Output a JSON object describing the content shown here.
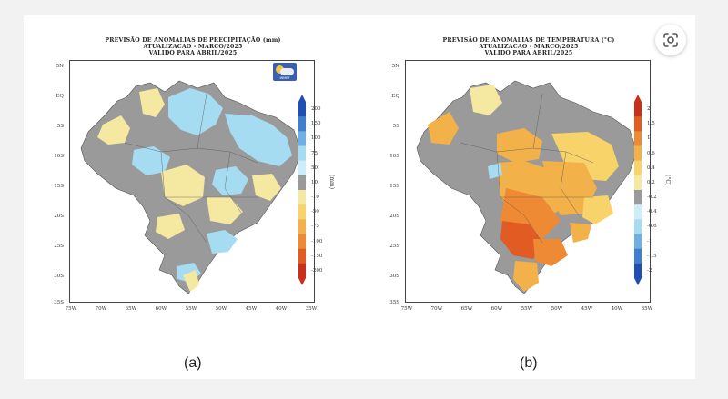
{
  "panels": [
    {
      "title_lines": [
        "PREVISÃO DE ANOMALIAS DE PRECIPITAÇÃO (mm)",
        "ATUALIZACAO - MARCO/2025",
        "VALIDO PARA ABRIL/2025"
      ],
      "caption": "(a)",
      "unit_label": "(mm)",
      "colorbar_ticks": [
        "200",
        "150",
        "100",
        "75",
        "50",
        "10",
        "-10",
        "-50",
        "-75",
        "-100",
        "-150",
        "-200"
      ],
      "colorbar_colors": [
        "#1f4fb4",
        "#3f7fd0",
        "#6fb0e4",
        "#a6dcf2",
        "#cdeef8",
        "#9a9a9a",
        "#f5e8a0",
        "#f7d36a",
        "#f3b14a",
        "#ee8a33",
        "#e15b22",
        "#c9301a"
      ]
    },
    {
      "title_lines": [
        "PREVISÃO DE ANOMALIAS DE TEMPERATURA (°C)",
        "ATUALIZACAO - MARCO/2025",
        "VALIDO PARA ABRIL/2025"
      ],
      "caption": "(b)",
      "unit_label": "(°C)",
      "colorbar_ticks": [
        "2",
        "1.5",
        "1",
        "0.6",
        "0.4",
        "0.2",
        "-0.2",
        "-0.4",
        "-0.6",
        "-1",
        "-1.5",
        "-2"
      ],
      "colorbar_colors": [
        "#c9301a",
        "#e15b22",
        "#ee8a33",
        "#f3b14a",
        "#f7d36a",
        "#f5e8a0",
        "#9a9a9a",
        "#cdeef8",
        "#a6dcf2",
        "#6fb0e4",
        "#3f7fd0",
        "#1f4fb4"
      ]
    }
  ],
  "axes": {
    "y_ticks": [
      "5N",
      "EQ",
      "5S",
      "10S",
      "15S",
      "20S",
      "25S",
      "30S",
      "35S"
    ],
    "x_ticks": [
      "75W",
      "70W",
      "65W",
      "60W",
      "55W",
      "50W",
      "45W",
      "40W",
      "35W"
    ]
  },
  "map_colors": {
    "grey": "#9a9a9a",
    "light_blue": "#a6dcf2",
    "cream": "#f5e8a0",
    "yellow": "#f7d36a",
    "orange": "#f3b14a",
    "dark_orange": "#ee8a33",
    "red_orange": "#e15b22"
  },
  "icons": {
    "lens": "google-lens-icon",
    "logo": "inmet-logo"
  }
}
